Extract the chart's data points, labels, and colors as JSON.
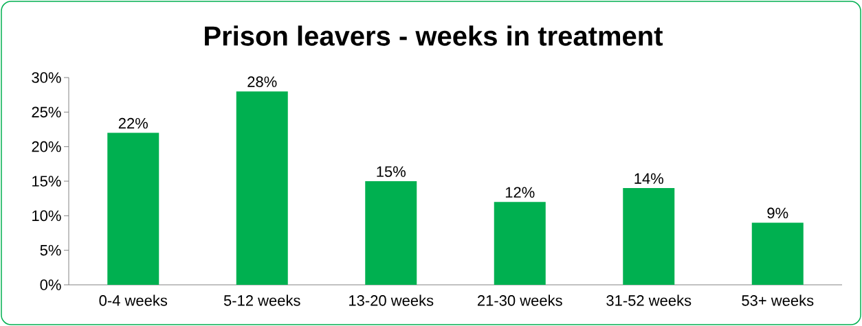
{
  "chart_data": {
    "type": "bar",
    "title": "Prison leavers - weeks in treatment",
    "categories": [
      "0-4 weeks",
      "5-12 weeks",
      "13-20 weeks",
      "21-30 weeks",
      "31-52 weeks",
      "53+ weeks"
    ],
    "values": [
      22,
      28,
      15,
      12,
      14,
      9
    ],
    "value_labels": [
      "22%",
      "28%",
      "15%",
      "12%",
      "14%",
      "9%"
    ],
    "color": "#00b050",
    "ylim": [
      0,
      30
    ],
    "yticks": [
      {
        "value": 0,
        "label": "0%"
      },
      {
        "value": 5,
        "label": "5%"
      },
      {
        "value": 10,
        "label": "10%"
      },
      {
        "value": 15,
        "label": "15%"
      },
      {
        "value": 20,
        "label": "20%"
      },
      {
        "value": 25,
        "label": "25%"
      },
      {
        "value": 30,
        "label": "30%"
      }
    ]
  }
}
